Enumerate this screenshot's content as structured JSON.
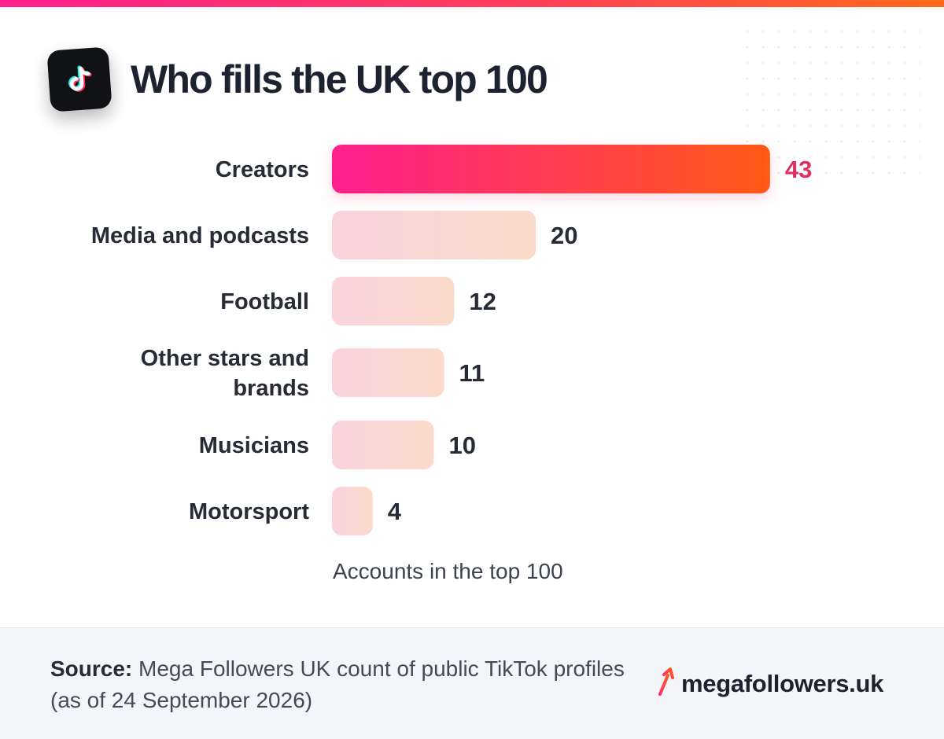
{
  "header": {
    "title": "Who fills the UK top 100",
    "icon": "tiktok-logo-icon"
  },
  "chart_data": {
    "type": "bar",
    "orientation": "horizontal",
    "categories": [
      "Creators",
      "Media and podcasts",
      "Football",
      "Other stars and brands",
      "Musicians",
      "Motorsport"
    ],
    "values": [
      43,
      20,
      12,
      11,
      10,
      4
    ],
    "highlight_index": 0,
    "xlabel": "Accounts in the top 100",
    "title": "Who fills the UK top 100",
    "grid": false,
    "colors": {
      "highlight_start": "#ff1f8e",
      "highlight_end": "#ff5a16",
      "bar_start": "#fad3dc",
      "bar_end": "#fbdacb",
      "highlight_value": "#e02f62"
    }
  },
  "footer": {
    "source_label": "Source:",
    "source_text": "Mega Followers UK count of public TikTok profiles (as of 24 September 2026)",
    "brand_name": "megafollowers.uk",
    "brand_icon": "arrow-up-right-icon"
  }
}
